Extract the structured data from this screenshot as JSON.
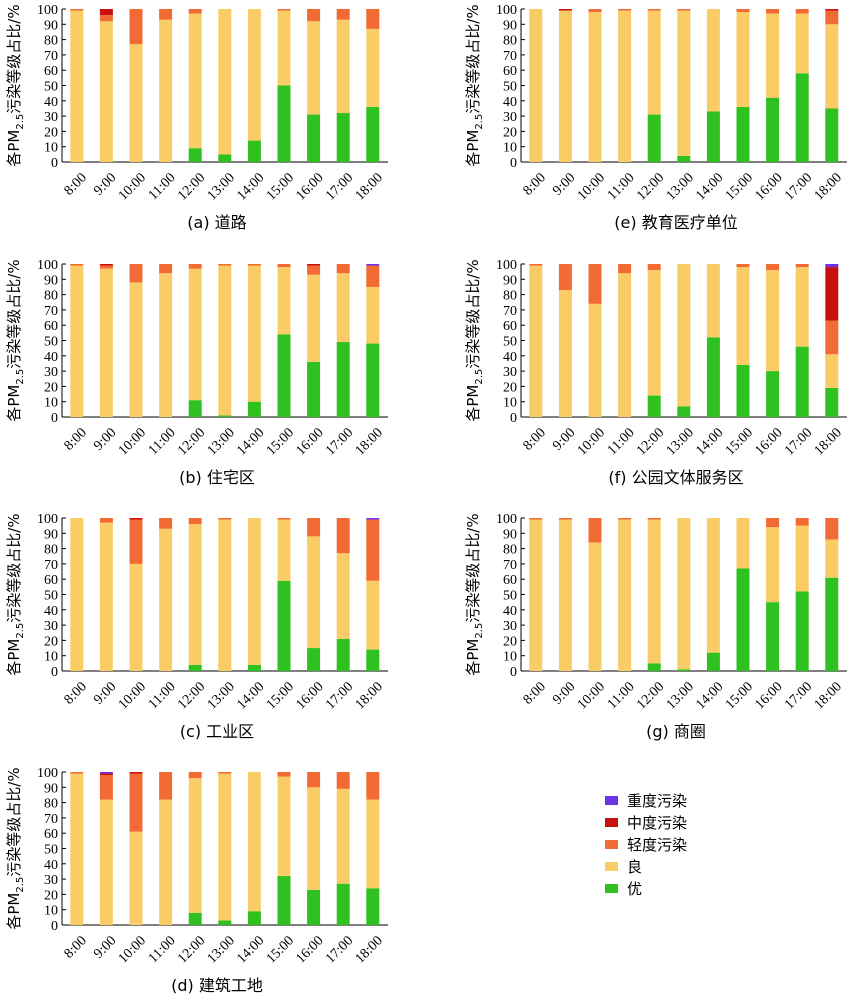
{
  "chart_data": [
    {
      "type": "bar",
      "stacked": true,
      "caption": "(a) 道路",
      "ylabel": "各PM2.5污染等级占比/%",
      "categories": [
        "8:00",
        "9:00",
        "10:00",
        "11:00",
        "12:00",
        "13:00",
        "14:00",
        "15:00",
        "16:00",
        "17:00",
        "18:00"
      ],
      "ylim": [
        0,
        100
      ],
      "yticks": [
        0,
        10,
        20,
        30,
        40,
        50,
        60,
        70,
        80,
        90,
        100
      ],
      "series": [
        {
          "name": "优",
          "values": [
            0,
            0,
            0,
            0,
            9,
            5,
            14,
            50,
            31,
            32,
            36
          ]
        },
        {
          "name": "良",
          "values": [
            99,
            92,
            77,
            93,
            88,
            95,
            86,
            49,
            61,
            61,
            51
          ]
        },
        {
          "name": "轻度污染",
          "values": [
            1,
            4,
            23,
            7,
            3,
            0,
            0,
            1,
            8,
            7,
            13
          ]
        },
        {
          "name": "中度污染",
          "values": [
            0,
            4,
            0,
            0,
            0,
            0,
            0,
            0,
            0,
            0,
            0
          ]
        },
        {
          "name": "重度污染",
          "values": [
            0,
            0,
            0,
            0,
            0,
            0,
            0,
            0,
            0,
            0,
            0
          ]
        }
      ]
    },
    {
      "type": "bar",
      "stacked": true,
      "caption": "(b) 住宅区",
      "ylabel": "各PM2.5污染等级占比/%",
      "categories": [
        "8:00",
        "9:00",
        "10:00",
        "11:00",
        "12:00",
        "13:00",
        "14:00",
        "15:00",
        "16:00",
        "17:00",
        "18:00"
      ],
      "ylim": [
        0,
        100
      ],
      "yticks": [
        0,
        10,
        20,
        30,
        40,
        50,
        60,
        70,
        80,
        90,
        100
      ],
      "series": [
        {
          "name": "优",
          "values": [
            0,
            0,
            0,
            0,
            11,
            1,
            10,
            54,
            36,
            49,
            48
          ]
        },
        {
          "name": "良",
          "values": [
            99,
            97,
            88,
            94,
            86,
            98,
            89,
            44,
            57,
            45,
            37
          ]
        },
        {
          "name": "轻度污染",
          "values": [
            1,
            2,
            12,
            6,
            3,
            1,
            1,
            2,
            6,
            6,
            14
          ]
        },
        {
          "name": "中度污染",
          "values": [
            0,
            1,
            0,
            0,
            0,
            0,
            0,
            0,
            1,
            0,
            0
          ]
        },
        {
          "name": "重度污染",
          "values": [
            0,
            0,
            0,
            0,
            0,
            0,
            0,
            0,
            0,
            0,
            1
          ]
        }
      ]
    },
    {
      "type": "bar",
      "stacked": true,
      "caption": "(c) 工业区",
      "ylabel": "各PM2.5污染等级占比/%",
      "categories": [
        "8:00",
        "9:00",
        "10:00",
        "11:00",
        "12:00",
        "13:00",
        "14:00",
        "15:00",
        "16:00",
        "17:00",
        "18:00"
      ],
      "ylim": [
        0,
        100
      ],
      "yticks": [
        0,
        10,
        20,
        30,
        40,
        50,
        60,
        70,
        80,
        90,
        100
      ],
      "series": [
        {
          "name": "优",
          "values": [
            0,
            0,
            0,
            0,
            4,
            0,
            4,
            59,
            15,
            21,
            14
          ]
        },
        {
          "name": "良",
          "values": [
            100,
            97,
            70,
            93,
            92,
            99,
            96,
            40,
            73,
            56,
            45
          ]
        },
        {
          "name": "轻度污染",
          "values": [
            0,
            3,
            29,
            7,
            4,
            1,
            0,
            1,
            12,
            23,
            40
          ]
        },
        {
          "name": "中度污染",
          "values": [
            0,
            0,
            1,
            0,
            0,
            0,
            0,
            0,
            0,
            0,
            0
          ]
        },
        {
          "name": "重度污染",
          "values": [
            0,
            0,
            0,
            0,
            0,
            0,
            0,
            0,
            0,
            0,
            1
          ]
        }
      ]
    },
    {
      "type": "bar",
      "stacked": true,
      "caption": "(d) 建筑工地",
      "ylabel": "各PM2.5污染等级占比/%",
      "categories": [
        "8:00",
        "9:00",
        "10:00",
        "11:00",
        "12:00",
        "13:00",
        "14:00",
        "15:00",
        "16:00",
        "17:00",
        "18:00"
      ],
      "ylim": [
        0,
        100
      ],
      "yticks": [
        0,
        10,
        20,
        30,
        40,
        50,
        60,
        70,
        80,
        90,
        100
      ],
      "series": [
        {
          "name": "优",
          "values": [
            0,
            0,
            0,
            0,
            8,
            3,
            9,
            32,
            23,
            27,
            24
          ]
        },
        {
          "name": "良",
          "values": [
            99,
            82,
            61,
            82,
            88,
            96,
            91,
            65,
            67,
            62,
            58
          ]
        },
        {
          "name": "轻度污染",
          "values": [
            1,
            16,
            38,
            18,
            4,
            1,
            0,
            3,
            10,
            11,
            18
          ]
        },
        {
          "name": "中度污染",
          "values": [
            0,
            1,
            1,
            0,
            0,
            0,
            0,
            0,
            0,
            0,
            0
          ]
        },
        {
          "name": "重度污染",
          "values": [
            0,
            1,
            0,
            0,
            0,
            0,
            0,
            0,
            0,
            0,
            0
          ]
        }
      ]
    },
    {
      "type": "bar",
      "stacked": true,
      "caption": "(e) 教育医疗单位",
      "ylabel": "各PM2.5污染等级占比/%",
      "categories": [
        "8:00",
        "9:00",
        "10:00",
        "11:00",
        "12:00",
        "13:00",
        "14:00",
        "15:00",
        "16:00",
        "17:00",
        "18:00"
      ],
      "ylim": [
        0,
        100
      ],
      "yticks": [
        0,
        10,
        20,
        30,
        40,
        50,
        60,
        70,
        80,
        90,
        100
      ],
      "series": [
        {
          "name": "优",
          "values": [
            0,
            0,
            0,
            0,
            31,
            4,
            33,
            36,
            42,
            58,
            35
          ]
        },
        {
          "name": "良",
          "values": [
            100,
            99,
            98,
            99,
            68,
            95,
            67,
            62,
            55,
            39,
            55
          ]
        },
        {
          "name": "轻度污染",
          "values": [
            0,
            0,
            2,
            1,
            1,
            1,
            0,
            2,
            3,
            3,
            9
          ]
        },
        {
          "name": "中度污染",
          "values": [
            0,
            1,
            0,
            0,
            0,
            0,
            0,
            0,
            0,
            0,
            1
          ]
        },
        {
          "name": "重度污染",
          "values": [
            0,
            0,
            0,
            0,
            0,
            0,
            0,
            0,
            0,
            0,
            0
          ]
        }
      ]
    },
    {
      "type": "bar",
      "stacked": true,
      "caption": "(f) 公园文体服务区",
      "ylabel": "各PM2.5污染等级占比/%",
      "categories": [
        "8:00",
        "9:00",
        "10:00",
        "11:00",
        "12:00",
        "13:00",
        "14:00",
        "15:00",
        "16:00",
        "17:00",
        "18:00"
      ],
      "ylim": [
        0,
        100
      ],
      "yticks": [
        0,
        10,
        20,
        30,
        40,
        50,
        60,
        70,
        80,
        90,
        100
      ],
      "series": [
        {
          "name": "优",
          "values": [
            0,
            0,
            0,
            0,
            14,
            7,
            52,
            34,
            30,
            46,
            19
          ]
        },
        {
          "name": "良",
          "values": [
            99,
            83,
            74,
            94,
            82,
            93,
            48,
            64,
            66,
            52,
            22
          ]
        },
        {
          "name": "轻度污染",
          "values": [
            1,
            17,
            26,
            6,
            4,
            0,
            0,
            2,
            4,
            2,
            22
          ]
        },
        {
          "name": "中度污染",
          "values": [
            0,
            0,
            0,
            0,
            0,
            0,
            0,
            0,
            0,
            0,
            35
          ]
        },
        {
          "name": "重度污染",
          "values": [
            0,
            0,
            0,
            0,
            0,
            0,
            0,
            0,
            0,
            0,
            2
          ]
        }
      ]
    },
    {
      "type": "bar",
      "stacked": true,
      "caption": "(g) 商圈",
      "ylabel": "各PM2.5污染等级占比/%",
      "categories": [
        "8:00",
        "9:00",
        "10:00",
        "11:00",
        "12:00",
        "13:00",
        "14:00",
        "15:00",
        "16:00",
        "17:00",
        "18:00"
      ],
      "ylim": [
        0,
        100
      ],
      "yticks": [
        0,
        10,
        20,
        30,
        40,
        50,
        60,
        70,
        80,
        90,
        100
      ],
      "series": [
        {
          "name": "优",
          "values": [
            0,
            0,
            0,
            0,
            5,
            1,
            12,
            67,
            45,
            52,
            61
          ]
        },
        {
          "name": "良",
          "values": [
            99,
            99,
            84,
            99,
            94,
            99,
            88,
            33,
            49,
            43,
            25
          ]
        },
        {
          "name": "轻度污染",
          "values": [
            1,
            1,
            16,
            1,
            1,
            0,
            0,
            0,
            6,
            5,
            14
          ]
        },
        {
          "name": "中度污染",
          "values": [
            0,
            0,
            0,
            0,
            0,
            0,
            0,
            0,
            0,
            0,
            0
          ]
        },
        {
          "name": "重度污染",
          "values": [
            0,
            0,
            0,
            0,
            0,
            0,
            0,
            0,
            0,
            0,
            0
          ]
        }
      ]
    }
  ],
  "colors": {
    "优": "#2fc11f",
    "良": "#f9cc66",
    "轻度污染": "#f26b34",
    "中度污染": "#c8100f",
    "重度污染": "#6e33e8"
  },
  "legend": [
    {
      "label": "重度污染",
      "color": "#6e33e8"
    },
    {
      "label": "中度污染",
      "color": "#c8100f"
    },
    {
      "label": "轻度污染",
      "color": "#f26b34"
    },
    {
      "label": "良",
      "color": "#f9cc66"
    },
    {
      "label": "优",
      "color": "#2fc11f"
    }
  ]
}
